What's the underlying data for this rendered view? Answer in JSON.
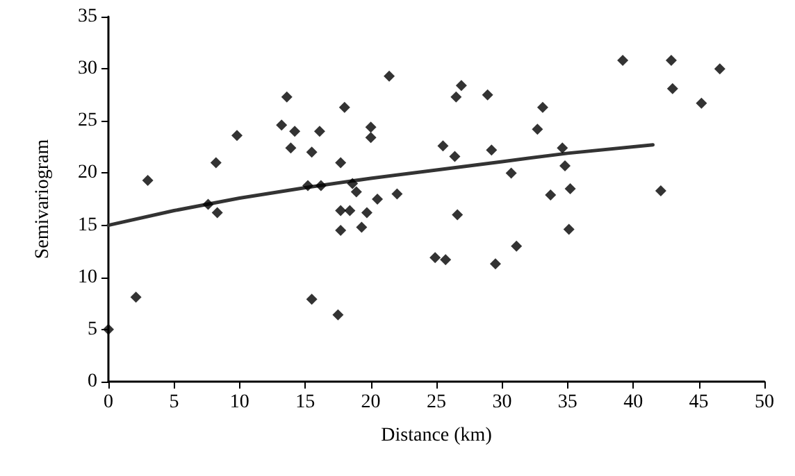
{
  "chart_data": {
    "type": "scatter",
    "xlabel": "Distance (km)",
    "ylabel": "Semivariogram",
    "xlim": [
      0,
      50
    ],
    "xticks": [
      0,
      5,
      10,
      15,
      20,
      25,
      30,
      35,
      40,
      45,
      50
    ],
    "ylim": [
      0,
      35
    ],
    "yticks": [
      0,
      5,
      10,
      15,
      20,
      25,
      30,
      35
    ],
    "grid": false,
    "marker": "diamond",
    "series": [
      {
        "type": "scatter",
        "color": "#000000",
        "x": [
          0,
          2.1,
          3,
          7.6,
          8.3,
          8.2,
          9.8,
          13.6,
          13.2,
          14.2,
          13.9,
          15.5,
          16.1,
          15.2,
          16.2,
          15.5,
          18,
          21.4,
          17.7,
          20,
          20,
          18.6,
          18.9,
          17.7,
          18.4,
          17.7,
          19.7,
          20.5,
          19.3,
          22,
          17.5,
          24.9,
          25.7,
          25.5,
          26.4,
          26.5,
          26.9,
          26.6,
          28.9,
          29.2,
          29.5,
          30.7,
          31.1,
          33.1,
          32.7,
          34.6,
          34.8,
          33.7,
          35.2,
          35.1,
          39.2,
          42.9,
          43,
          45.2,
          46.6,
          42.1
        ],
        "values": [
          5,
          8.1,
          19.3,
          17,
          16.2,
          21,
          23.6,
          27.3,
          24.6,
          24,
          22.4,
          22,
          24,
          18.8,
          18.8,
          7.9,
          26.3,
          29.3,
          21,
          24.4,
          23.4,
          19,
          18.2,
          16.4,
          16.4,
          14.5,
          16.2,
          17.5,
          14.8,
          18,
          6.4,
          11.9,
          11.7,
          22.6,
          21.6,
          27.3,
          28.4,
          16,
          27.5,
          22.2,
          11.3,
          20,
          13,
          26.3,
          24.2,
          22.4,
          20.7,
          17.9,
          18.5,
          14.6,
          30.8,
          30.8,
          28.1,
          26.7,
          30,
          18.3
        ]
      },
      {
        "type": "line",
        "color": "#333333",
        "marker": "none",
        "line_style": "solid",
        "x": [
          0,
          5,
          10,
          15,
          20,
          25,
          30,
          35,
          41.5
        ],
        "values": [
          15,
          16.4,
          17.6,
          18.6,
          19.5,
          20.3,
          21.1,
          21.9,
          22.7
        ]
      }
    ]
  }
}
